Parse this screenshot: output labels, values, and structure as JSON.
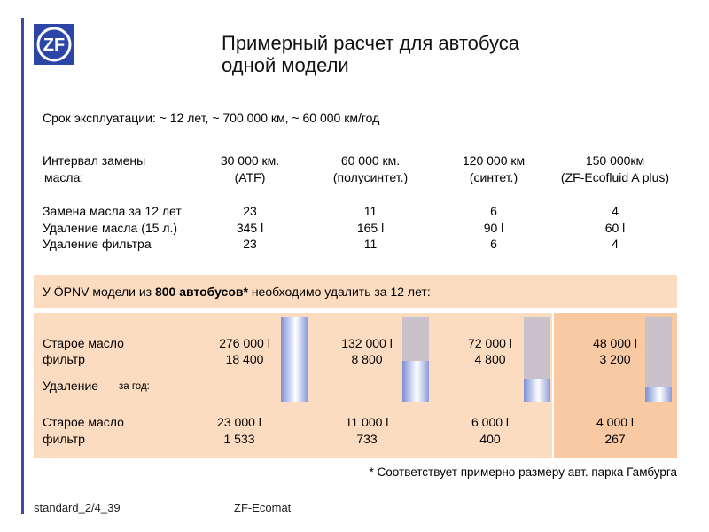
{
  "title_line1": "Примерный расчет  для автобуса",
  "title_line2": "одной модели",
  "logo_text": "ZF",
  "service_life": "Срок эксплуатации: ~ 12 лет, ~ 700 000 км, ~ 60 000 км/год",
  "interval_label_1": "Интервал замены",
  "interval_label_2": "масла:",
  "columns": [
    {
      "interval": "30 000 км.",
      "oil": "(ATF)",
      "changes": "23",
      "oil_removed": "345 l",
      "filters": "23",
      "old_oil": "276 000 l",
      "old_filter": "18 400",
      "yr_oil": "23 000 l",
      "yr_filter": "1 533",
      "fill": 1.0
    },
    {
      "interval": "60 000 км.",
      "oil": "(полусинтет.)",
      "changes": "11",
      "oil_removed": "165 l",
      "filters": "11",
      "old_oil": "132 000 l",
      "old_filter": "8 800",
      "yr_oil": "11 000 l",
      "yr_filter": "733",
      "fill": 0.478
    },
    {
      "interval": "120 000 км",
      "oil": "(синтет.)",
      "changes": "6",
      "oil_removed": "90 l",
      "filters": "6",
      "old_oil": "72 000 l",
      "old_filter": "4 800",
      "yr_oil": "6 000 l",
      "yr_filter": "400",
      "fill": 0.26
    },
    {
      "interval": "150 000км",
      "oil": "(ZF-Ecofluid A plus)",
      "changes": "4",
      "oil_removed": "60 l",
      "filters": "4",
      "old_oil": "48 000 l",
      "old_filter": "3 200",
      "yr_oil": "4 000 l",
      "yr_filter": "267",
      "fill": 0.174
    }
  ],
  "row_labels": {
    "changes": "Замена масла за 12 лет",
    "oil_removed": "Удаление масла (15 л.)",
    "filters": "Удаление фильтра"
  },
  "opnv_prefix": "У ÖPNV модели из ",
  "opnv_bold": "800 автобусов*",
  "opnv_suffix": " необходимо удалить  за 12 лет:",
  "old_oil_label": "Старое масло",
  "filter_label": "фильтр",
  "removal_label": "Удаление",
  "per_year_label": "за год:",
  "footnote": "* Соответствует примерно размеру авт. парка Гамбурга",
  "footer_left": "standard_2/4_39",
  "footer_center": "ZF-Ecomat"
}
